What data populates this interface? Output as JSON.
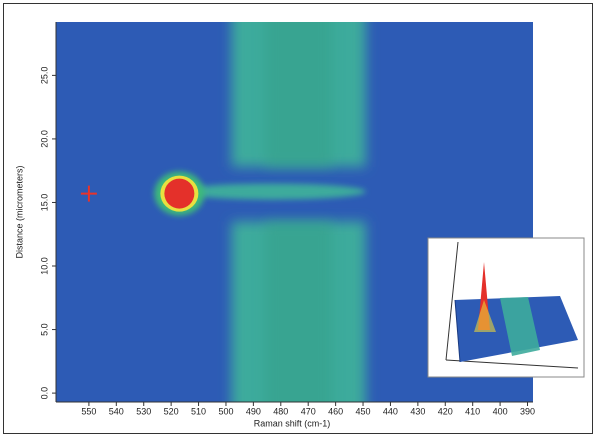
{
  "chart_data": {
    "type": "heatmap",
    "xlabel": "Raman shift (cm-1)",
    "ylabel": "Distance (micrometers)",
    "xlim": [
      562,
      388
    ],
    "ylim": [
      -0.7,
      29.2
    ],
    "xticks": [
      550,
      540,
      530,
      520,
      510,
      500,
      490,
      480,
      470,
      460,
      450,
      440,
      430,
      420,
      410,
      400,
      390
    ],
    "yticks": [
      {
        "value": 0,
        "label": "0.0"
      },
      {
        "value": 5,
        "label": "5.0"
      },
      {
        "value": 10,
        "label": "10.0"
      },
      {
        "value": 15,
        "label": "15.0"
      },
      {
        "value": 20,
        "label": "20.0"
      },
      {
        "value": 25,
        "label": "25.0"
      }
    ],
    "background_color": "#2d5bb5",
    "band": {
      "x": [
        498,
        449
      ],
      "gap": [
        13.5,
        17.8
      ],
      "color": "#3dab9c"
    },
    "hotspot": {
      "x": 517,
      "y": 15.7,
      "color": "#e4302a"
    },
    "marker": {
      "x": 550,
      "y": 15.7,
      "color": "#e8332a"
    }
  }
}
